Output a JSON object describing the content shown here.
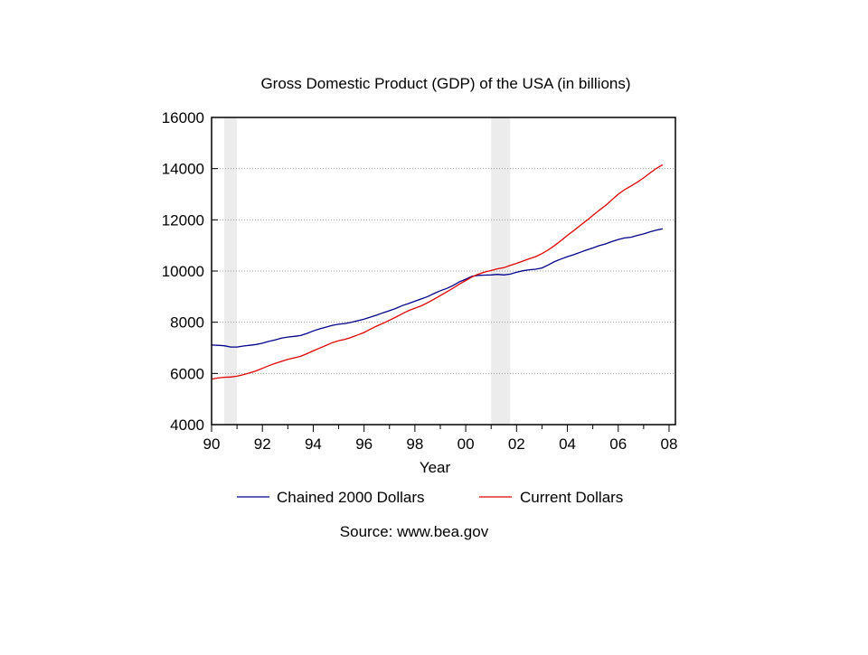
{
  "chart_data": {
    "type": "line",
    "title": "Gross Domestic Product (GDP) of the USA (in billions)",
    "xlabel": "Year",
    "ylabel": "",
    "xlim": [
      1990.0,
      2008.25
    ],
    "ylim": [
      4000,
      16000
    ],
    "x_ticks": [
      1990,
      1992,
      1994,
      1996,
      1998,
      2000,
      2002,
      2004,
      2006,
      2008
    ],
    "x_tick_labels": [
      "90",
      "92",
      "94",
      "96",
      "98",
      "00",
      "02",
      "04",
      "06",
      "08"
    ],
    "y_ticks": [
      4000,
      6000,
      8000,
      10000,
      12000,
      14000,
      16000
    ],
    "y_tick_labels": [
      "4000",
      "6000",
      "8000",
      "10000",
      "12000",
      "14000",
      "16000"
    ],
    "grid": "horizontal-dotted",
    "shaded_periods": [
      [
        1990.5,
        1991.0
      ],
      [
        2001.0,
        2001.75
      ]
    ],
    "legend": "below",
    "source_note": "Source: www.bea.gov",
    "x": [
      1990.0,
      1990.25,
      1990.5,
      1990.75,
      1991.0,
      1991.25,
      1991.5,
      1991.75,
      1992.0,
      1992.25,
      1992.5,
      1992.75,
      1993.0,
      1993.25,
      1993.5,
      1993.75,
      1994.0,
      1994.25,
      1994.5,
      1994.75,
      1995.0,
      1995.25,
      1995.5,
      1995.75,
      1996.0,
      1996.25,
      1996.5,
      1996.75,
      1997.0,
      1997.25,
      1997.5,
      1997.75,
      1998.0,
      1998.25,
      1998.5,
      1998.75,
      1999.0,
      1999.25,
      1999.5,
      1999.75,
      2000.0,
      2000.25,
      2000.5,
      2000.75,
      2001.0,
      2001.25,
      2001.5,
      2001.75,
      2002.0,
      2002.25,
      2002.5,
      2002.75,
      2003.0,
      2003.25,
      2003.5,
      2003.75,
      2004.0,
      2004.25,
      2004.5,
      2004.75,
      2005.0,
      2005.25,
      2005.5,
      2005.75,
      2006.0,
      2006.25,
      2006.5,
      2006.75,
      2007.0,
      2007.25,
      2007.5,
      2007.75
    ],
    "series": [
      {
        "name": "Chained 2000 Dollars",
        "color": "#00008b",
        "values": [
          7110,
          7100,
          7080,
          7030,
          7030,
          7070,
          7100,
          7130,
          7180,
          7250,
          7310,
          7380,
          7420,
          7450,
          7480,
          7560,
          7660,
          7740,
          7810,
          7880,
          7920,
          7950,
          8000,
          8060,
          8120,
          8200,
          8280,
          8370,
          8450,
          8540,
          8650,
          8730,
          8820,
          8910,
          9000,
          9120,
          9230,
          9320,
          9430,
          9580,
          9680,
          9800,
          9830,
          9840,
          9850,
          9870,
          9850,
          9880,
          9950,
          10010,
          10050,
          10070,
          10120,
          10240,
          10370,
          10470,
          10560,
          10640,
          10730,
          10820,
          10900,
          10990,
          11060,
          11150,
          11230,
          11290,
          11320,
          11390,
          11450,
          11530,
          11600,
          11650
        ]
      },
      {
        "name": "Current Dollars",
        "color": "#e00000",
        "values": [
          5780,
          5820,
          5850,
          5860,
          5890,
          5950,
          6020,
          6100,
          6200,
          6300,
          6390,
          6470,
          6550,
          6610,
          6670,
          6770,
          6880,
          6990,
          7090,
          7200,
          7280,
          7330,
          7410,
          7500,
          7600,
          7730,
          7850,
          7960,
          8080,
          8200,
          8330,
          8450,
          8550,
          8640,
          8760,
          8900,
          9040,
          9180,
          9330,
          9490,
          9630,
          9770,
          9880,
          9960,
          10020,
          10090,
          10130,
          10220,
          10300,
          10390,
          10480,
          10560,
          10680,
          10830,
          11000,
          11190,
          11390,
          11580,
          11780,
          11970,
          12170,
          12370,
          12560,
          12780,
          13000,
          13180,
          13320,
          13470,
          13640,
          13830,
          14010,
          14150
        ]
      }
    ]
  }
}
